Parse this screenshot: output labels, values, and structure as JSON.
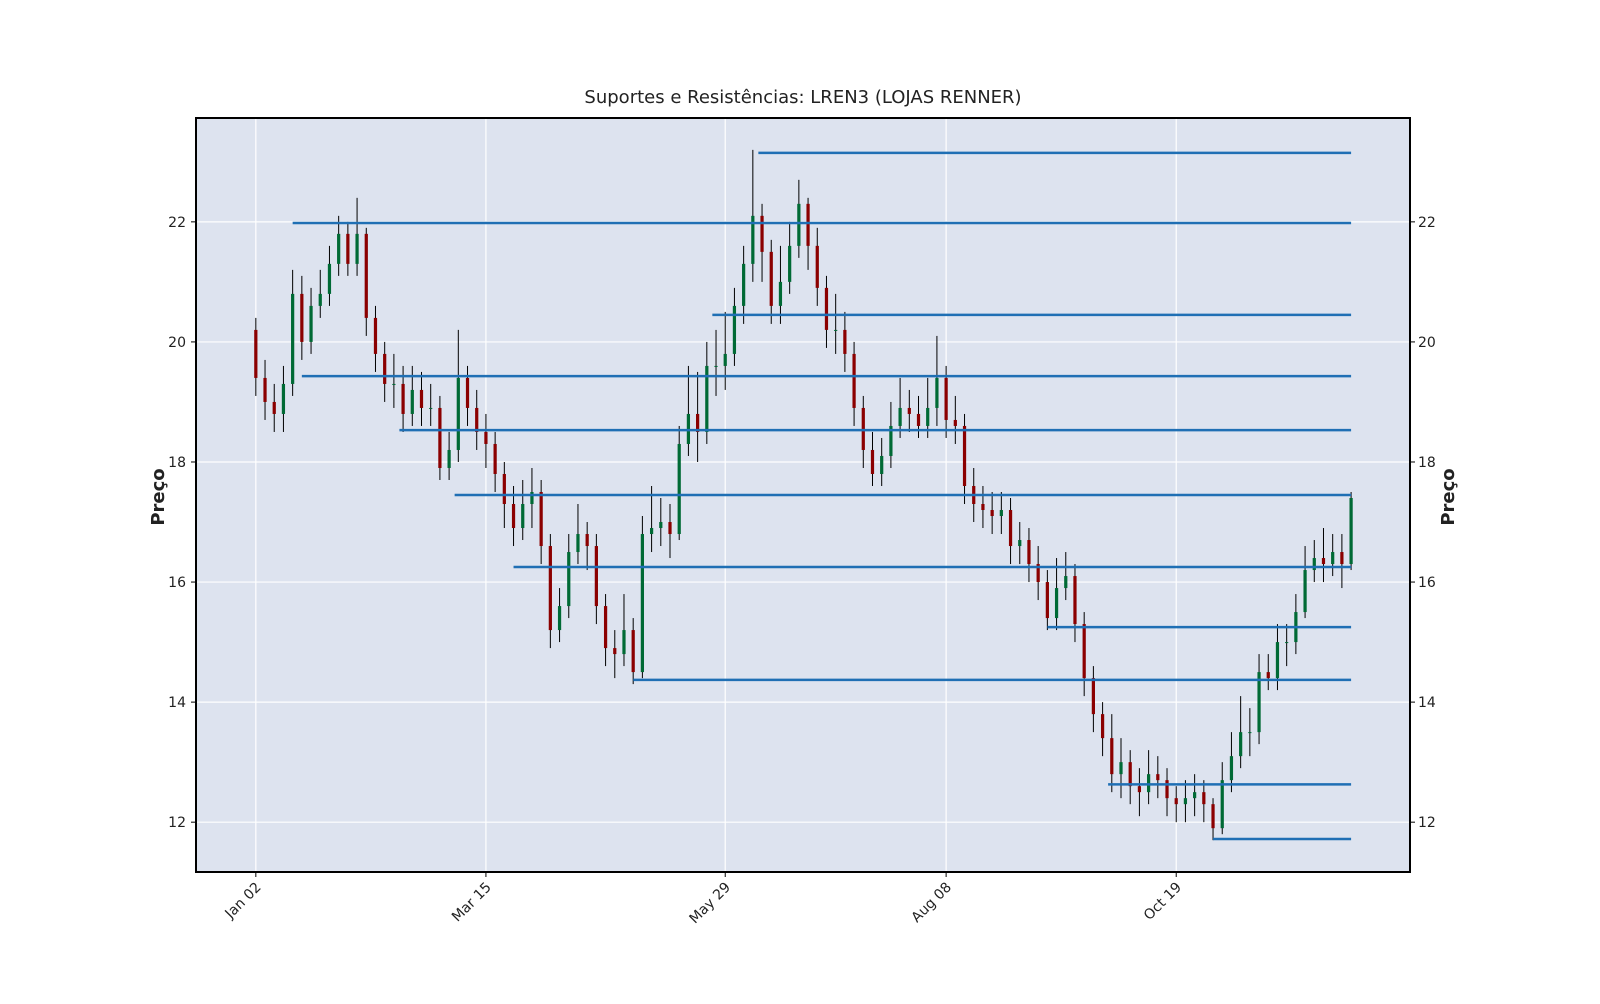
{
  "chart_data": {
    "type": "candlestick",
    "title": "Suportes e Resistências: LREN3 (LOJAS RENNER)",
    "ylabel": "Preço",
    "xlim": [
      -6.5,
      125.4
    ],
    "xticks": [
      {
        "value": 0,
        "label": "Jan 02"
      },
      {
        "value": 25,
        "label": "Mar 15"
      },
      {
        "value": 51,
        "label": "May 29"
      },
      {
        "value": 75,
        "label": "Aug 08"
      },
      {
        "value": 100,
        "label": "Oct 19"
      }
    ],
    "ylim": [
      11.17,
      23.73
    ],
    "yticks": [
      12,
      14,
      16,
      18,
      20,
      22
    ],
    "grid": true,
    "up_color": "#006a35",
    "down_color": "#8b0000",
    "wick_color": "#000000",
    "level_color": "#1f6fb4",
    "open": [
      20.2,
      19.4,
      19.0,
      18.8,
      19.3,
      20.8,
      20.0,
      20.6,
      20.8,
      21.3,
      21.8,
      21.3,
      21.8,
      20.4,
      19.8,
      19.3,
      19.3,
      18.8,
      19.2,
      18.9,
      18.9,
      17.9,
      18.2,
      19.4,
      18.9,
      18.5,
      18.3,
      17.8,
      17.3,
      16.9,
      17.3,
      17.5,
      16.6,
      15.2,
      15.6,
      16.5,
      16.8,
      16.6,
      15.6,
      14.9,
      14.8,
      15.2,
      14.5,
      16.8,
      16.9,
      17.0,
      16.8,
      18.3,
      18.8,
      18.5,
      19.6,
      19.6,
      19.8,
      20.6,
      21.3,
      22.1,
      21.5,
      20.6,
      21.0,
      21.6,
      22.3,
      21.6,
      20.9,
      20.2,
      20.2,
      19.8,
      18.9,
      18.2,
      17.8,
      18.1,
      18.6,
      18.9,
      18.8,
      18.6,
      18.9,
      19.4,
      18.7,
      18.6,
      17.6,
      17.3,
      17.2,
      17.1,
      17.2,
      16.6,
      16.7,
      16.3,
      16.0,
      15.4,
      15.9,
      16.1,
      15.3,
      14.4,
      13.8,
      13.4,
      12.8,
      13.0,
      12.6,
      12.5,
      12.8,
      12.7,
      12.4,
      12.3,
      12.4,
      12.5,
      12.3,
      11.9,
      12.7,
      13.1,
      13.5,
      13.5,
      14.5,
      14.4,
      15.0,
      15.0,
      15.5,
      16.2,
      16.4,
      16.3,
      16.5,
      16.3
    ],
    "high": [
      20.4,
      19.7,
      19.3,
      19.6,
      21.2,
      21.1,
      20.9,
      21.2,
      21.6,
      22.1,
      22.0,
      22.4,
      21.9,
      20.6,
      20.0,
      19.8,
      19.6,
      19.6,
      19.5,
      19.3,
      19.1,
      18.5,
      20.2,
      19.6,
      19.2,
      18.8,
      18.5,
      18.0,
      17.6,
      17.7,
      17.9,
      17.7,
      16.8,
      15.9,
      16.8,
      17.3,
      17.0,
      16.8,
      15.8,
      15.2,
      15.8,
      15.4,
      17.1,
      17.6,
      17.4,
      17.3,
      18.6,
      19.6,
      19.5,
      20.0,
      20.2,
      20.5,
      20.9,
      21.6,
      23.2,
      22.3,
      21.7,
      21.6,
      22.0,
      22.7,
      22.4,
      21.9,
      21.1,
      20.8,
      20.5,
      20.0,
      19.1,
      18.5,
      18.4,
      19.0,
      19.4,
      19.2,
      19.1,
      19.4,
      20.1,
      19.6,
      19.1,
      18.8,
      17.9,
      17.6,
      17.5,
      17.5,
      17.4,
      17.0,
      16.9,
      16.6,
      16.2,
      16.4,
      16.5,
      16.3,
      15.5,
      14.6,
      14.0,
      13.8,
      13.4,
      13.2,
      12.9,
      13.2,
      13.1,
      12.9,
      12.6,
      12.7,
      12.8,
      12.7,
      12.4,
      13.0,
      13.5,
      14.1,
      13.9,
      14.8,
      14.8,
      15.3,
      15.3,
      15.8,
      16.6,
      16.7,
      16.9,
      16.8,
      16.8,
      17.5
    ],
    "low": [
      19.1,
      18.7,
      18.5,
      18.5,
      19.1,
      19.7,
      19.8,
      20.4,
      20.6,
      21.1,
      21.1,
      21.1,
      20.1,
      19.5,
      19.0,
      18.9,
      18.5,
      18.6,
      18.6,
      18.6,
      17.7,
      17.7,
      18.0,
      18.6,
      18.2,
      17.9,
      17.5,
      16.9,
      16.6,
      16.7,
      16.9,
      16.3,
      14.9,
      15.0,
      15.4,
      16.3,
      16.2,
      15.3,
      14.6,
      14.4,
      14.6,
      14.3,
      14.4,
      16.5,
      16.6,
      16.4,
      16.7,
      18.1,
      18.0,
      18.3,
      19.1,
      19.2,
      19.6,
      20.3,
      21.0,
      21.0,
      20.3,
      20.3,
      20.8,
      21.4,
      21.2,
      20.6,
      19.9,
      19.8,
      19.5,
      18.6,
      17.9,
      17.6,
      17.6,
      17.9,
      18.4,
      18.5,
      18.4,
      18.4,
      18.6,
      18.4,
      18.3,
      17.3,
      17.0,
      16.9,
      16.8,
      16.8,
      16.3,
      16.3,
      16.0,
      15.7,
      15.2,
      15.2,
      15.7,
      15.0,
      14.1,
      13.5,
      13.1,
      12.5,
      12.4,
      12.3,
      12.1,
      12.3,
      12.4,
      12.1,
      12.0,
      12.0,
      12.1,
      12.0,
      11.7,
      11.8,
      12.5,
      12.9,
      13.1,
      13.3,
      14.2,
      14.2,
      14.6,
      14.8,
      15.4,
      16.0,
      16.0,
      16.1,
      15.9,
      16.2
    ],
    "close": [
      19.4,
      19.0,
      18.8,
      19.3,
      20.8,
      20.0,
      20.6,
      20.8,
      21.3,
      21.8,
      21.3,
      21.8,
      20.4,
      19.8,
      19.3,
      19.3,
      18.8,
      19.2,
      18.9,
      18.9,
      17.9,
      18.2,
      19.4,
      18.9,
      18.5,
      18.3,
      17.8,
      17.3,
      16.9,
      17.3,
      17.5,
      16.6,
      15.2,
      15.6,
      16.5,
      16.8,
      16.6,
      15.6,
      14.9,
      14.8,
      15.2,
      14.5,
      16.8,
      16.9,
      17.0,
      16.8,
      18.3,
      18.8,
      18.5,
      19.6,
      19.6,
      19.8,
      20.6,
      21.3,
      22.1,
      21.5,
      20.6,
      21.0,
      21.6,
      22.3,
      21.6,
      20.9,
      20.2,
      20.2,
      19.8,
      18.9,
      18.2,
      17.8,
      18.1,
      18.6,
      18.9,
      18.8,
      18.6,
      18.9,
      19.4,
      18.7,
      18.6,
      17.6,
      17.3,
      17.2,
      17.1,
      17.2,
      16.6,
      16.7,
      16.3,
      16.0,
      15.4,
      15.9,
      16.1,
      15.3,
      14.4,
      13.8,
      13.4,
      12.8,
      13.0,
      12.6,
      12.5,
      12.8,
      12.7,
      12.4,
      12.3,
      12.4,
      12.5,
      12.3,
      11.9,
      12.7,
      13.1,
      13.5,
      13.5,
      14.5,
      14.4,
      15.0,
      15.0,
      15.5,
      16.2,
      16.4,
      16.3,
      16.5,
      16.3,
      17.4
    ],
    "levels": [
      {
        "value": 23.15,
        "start": 54.6
      },
      {
        "value": 21.98,
        "start": 4
      },
      {
        "value": 20.45,
        "start": 49.6
      },
      {
        "value": 19.43,
        "start": 5
      },
      {
        "value": 18.53,
        "start": 15.6
      },
      {
        "value": 17.45,
        "start": 21.6
      },
      {
        "value": 16.25,
        "start": 28
      },
      {
        "value": 15.25,
        "start": 86
      },
      {
        "value": 14.37,
        "start": 41
      },
      {
        "value": 12.63,
        "start": 92.6
      },
      {
        "value": 11.72,
        "start": 104
      }
    ],
    "levels_end": 119
  }
}
